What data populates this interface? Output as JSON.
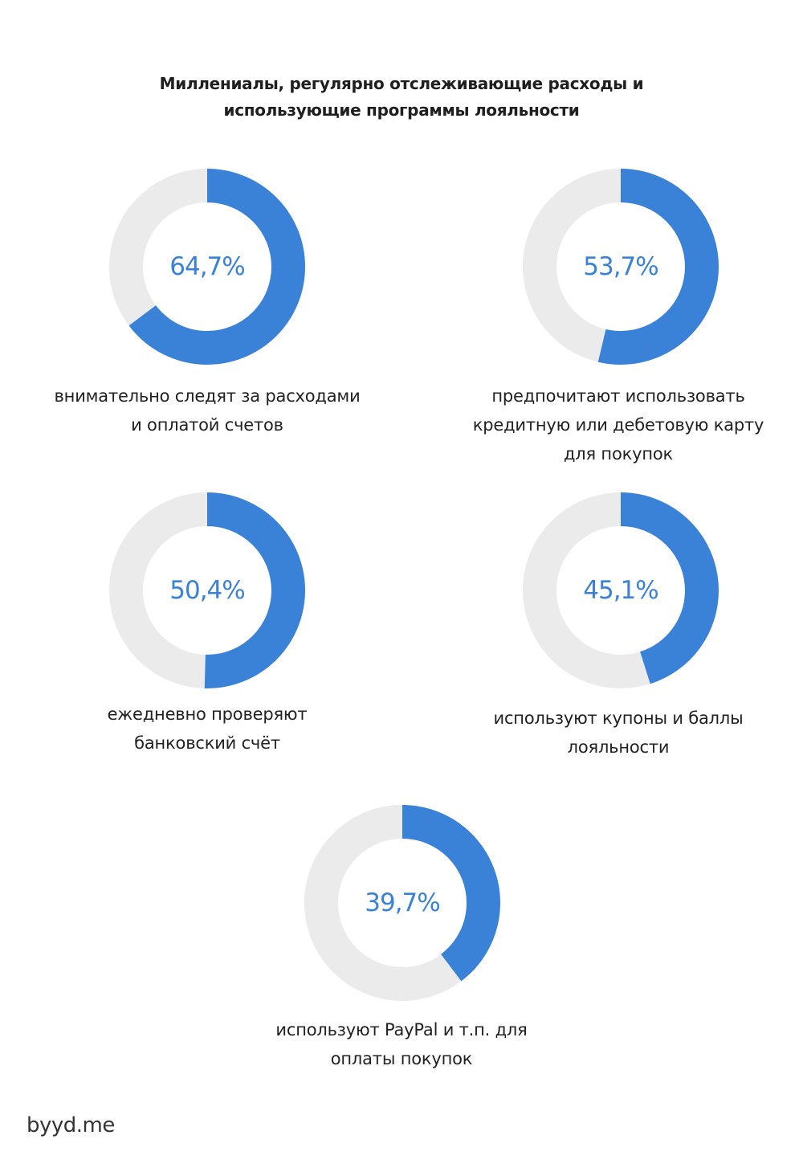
{
  "colors": {
    "accent": "#3a81d8",
    "track": "#ebebeb",
    "value_text": "#3a81d8"
  },
  "header": {
    "title_line1": "Миллениалы, регулярно отслеживающие расходы и",
    "title_line2": "использующие программы лояльности"
  },
  "chart_data": {
    "type": "pie",
    "items": [
      {
        "value": 64.7,
        "value_label": "64,7%",
        "desc_lines": [
          "внимательно следят за расходами",
          "и оплатой счетов"
        ]
      },
      {
        "value": 53.7,
        "value_label": "53,7%",
        "desc_lines": [
          "предпочитают использовать",
          "кредитную или дебетовую карту",
          "для покупок"
        ]
      },
      {
        "value": 50.4,
        "value_label": "50,4%",
        "desc_lines": [
          "ежедневно проверяют",
          "банковский счёт"
        ]
      },
      {
        "value": 45.1,
        "value_label": "45,1%",
        "desc_lines": [
          "используют купоны и баллы",
          "лояльности"
        ]
      },
      {
        "value": 39.7,
        "value_label": "39,7%",
        "desc_lines": [
          "используют PayPal и т.п. для",
          "оплаты покупок"
        ]
      }
    ]
  },
  "footer": {
    "brand": "byyd.me"
  }
}
